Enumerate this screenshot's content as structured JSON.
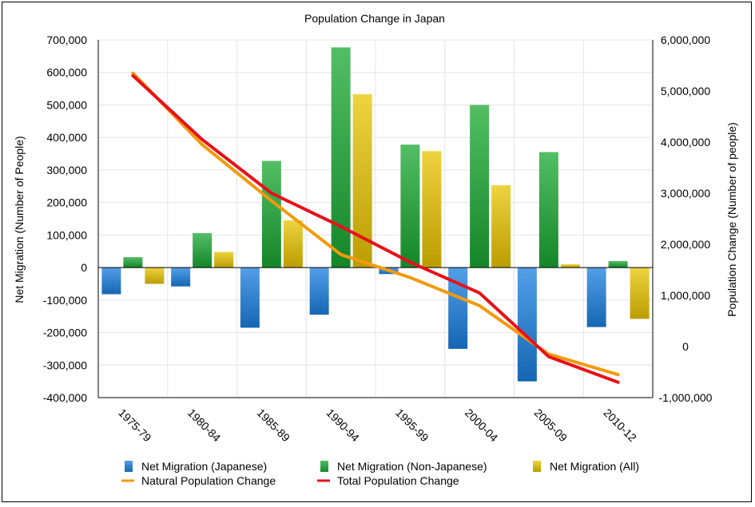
{
  "chart_data": {
    "type": "bar",
    "title": "Population Change in Japan",
    "categories": [
      "1975-79",
      "1980-84",
      "1985-89",
      "1990-94",
      "1995-99",
      "2000-04",
      "2005-09",
      "2010-12"
    ],
    "ylabel_left": "Net Migration (Number of People)",
    "ylabel_right": "Population Change (Number of people)",
    "xlabel": "",
    "ylim_left": [
      -400000,
      700000
    ],
    "ylim_right": [
      -1000000,
      6000000
    ],
    "yticks_left": [
      -400000,
      -300000,
      -200000,
      -100000,
      0,
      100000,
      200000,
      300000,
      400000,
      500000,
      600000,
      700000
    ],
    "yticks_left_labels": [
      "-400,000",
      "-300,000",
      "-200,000",
      "-100,000",
      "0",
      "100,000",
      "200,000",
      "300,000",
      "400,000",
      "500,000",
      "600,000",
      "700,000"
    ],
    "yticks_right": [
      -1000000,
      0,
      1000000,
      2000000,
      3000000,
      4000000,
      5000000,
      6000000
    ],
    "yticks_right_labels": [
      "-1,000,000",
      "0",
      "1,000,000",
      "2,000,000",
      "3,000,000",
      "4,000,000",
      "5,000,000",
      "6,000,000"
    ],
    "grid": true,
    "legend_position": "bottom",
    "bar_series": [
      {
        "name": "Net Migration (Japanese)",
        "axis": "left",
        "color": "#1a7fe0",
        "values": [
          -82000,
          -58000,
          -185000,
          -145000,
          -20000,
          -250000,
          -350000,
          -183000
        ]
      },
      {
        "name": "Net Migration (Non-Japanese)",
        "axis": "left",
        "color": "#19a832",
        "values": [
          32000,
          106000,
          328000,
          677000,
          378000,
          500000,
          355000,
          20000
        ]
      },
      {
        "name": "Net Migration (All)",
        "axis": "left",
        "color": "#e8c400",
        "values": [
          -50000,
          48000,
          145000,
          533000,
          358000,
          253000,
          10000,
          -158000
        ]
      }
    ],
    "line_series": [
      {
        "name": "Natural Population Change",
        "axis": "right",
        "color": "#f29a0e",
        "values": [
          5350000,
          3950000,
          2850000,
          1800000,
          1350000,
          800000,
          -150000,
          -550000
        ]
      },
      {
        "name": "Total Population Change",
        "axis": "right",
        "color": "#e8101a",
        "values": [
          5300000,
          4050000,
          3000000,
          2350000,
          1650000,
          1050000,
          -200000,
          -700000
        ]
      }
    ]
  }
}
